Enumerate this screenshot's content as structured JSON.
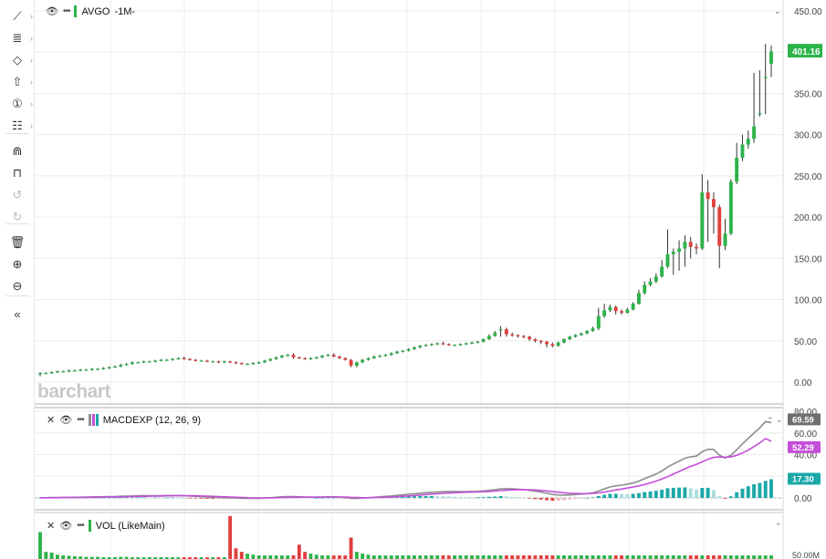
{
  "toolbar": {
    "items": [
      {
        "name": "line-tool-icon",
        "glyph": "⟋",
        "arrow": true
      },
      {
        "name": "fib-tool-icon",
        "glyph": "≣",
        "arrow": true
      },
      {
        "name": "shape-tool-icon",
        "glyph": "◇",
        "arrow": true
      },
      {
        "name": "arrow-tool-icon",
        "glyph": "⇧",
        "arrow": true
      },
      {
        "name": "annotation-tool-icon",
        "glyph": "①",
        "arrow": true
      },
      {
        "name": "settings-tool-icon",
        "glyph": "☷",
        "arrow": true
      },
      {
        "name": "magnet-icon",
        "glyph": "⋒",
        "arrow": false
      },
      {
        "name": "unlock-icon",
        "glyph": "⊓",
        "arrow": false
      },
      {
        "name": "undo-icon",
        "glyph": "↺",
        "arrow": false,
        "disabled": true
      },
      {
        "name": "redo-icon",
        "glyph": "↻",
        "arrow": false,
        "disabled": true
      },
      {
        "name": "trash-icon",
        "glyph": "🗑",
        "arrow": false
      },
      {
        "name": "zoom-in-icon",
        "glyph": "⊕",
        "arrow": false
      },
      {
        "name": "zoom-out-icon",
        "glyph": "⊖",
        "arrow": false
      },
      {
        "name": "collapse-icon",
        "glyph": "«",
        "arrow": false
      }
    ]
  },
  "main_legend": {
    "symbol": "AVGO",
    "interval": "-1M-",
    "swatch": "#2db34a"
  },
  "macd_legend": {
    "label": "MACDEXP (12, 26, 9)",
    "swatch_a": "#8c8c8c",
    "swatch_b": "#c44ed8"
  },
  "vol_legend": {
    "label": "VOL (LikeMain)",
    "swatch": "#2db34a"
  },
  "watermark": "barchart",
  "colors": {
    "up": "#2db34a",
    "down": "#e0403f",
    "macd_line": "#8c8c8c",
    "signal_line": "#c44ed8",
    "hist": "#1ba8a8",
    "hist_light": "#a9dede"
  },
  "chart_data": [
    {
      "type": "candlestick",
      "title": "AVGO -1M-",
      "ylim": [
        -20,
        450
      ],
      "y_ticks": [
        "450.00",
        "400.00",
        "350.00",
        "300.00",
        "250.00",
        "200.00",
        "150.00",
        "100.00",
        "50.00",
        "0.00"
      ],
      "last_price_label": "401.16",
      "close": [
        11,
        11,
        12,
        13,
        13,
        14,
        14,
        15,
        15,
        16,
        16,
        17,
        18,
        19,
        21,
        22,
        24,
        24,
        25,
        25,
        26,
        27,
        27,
        28,
        29,
        28,
        27,
        26,
        26,
        25,
        25,
        24,
        25,
        24,
        23,
        22,
        22,
        23,
        24,
        26,
        28,
        30,
        32,
        33,
        30,
        29,
        28,
        29,
        30,
        32,
        33,
        31,
        29,
        27,
        20,
        24,
        27,
        29,
        31,
        32,
        33,
        35,
        37,
        38,
        40,
        42,
        44,
        45,
        46,
        47,
        46,
        45,
        45,
        46,
        47,
        48,
        49,
        52,
        56,
        60,
        64,
        58,
        57,
        56,
        55,
        52,
        50,
        49,
        46,
        44,
        48,
        52,
        55,
        57,
        59,
        62,
        65,
        80,
        87,
        91,
        86,
        84,
        88,
        95,
        108,
        118,
        122,
        128,
        140,
        155,
        158,
        162,
        170,
        164,
        162,
        230,
        222,
        212,
        165,
        180,
        243,
        272,
        288,
        295,
        310,
        326,
        370,
        401
      ],
      "open": [
        10,
        11,
        11,
        12,
        13,
        13,
        14,
        14,
        15,
        15,
        16,
        16,
        17,
        18,
        19,
        21,
        22,
        24,
        24,
        25,
        25,
        26,
        27,
        27,
        28,
        29,
        28,
        27,
        26,
        26,
        25,
        25,
        24,
        25,
        24,
        23,
        22,
        22,
        23,
        24,
        26,
        28,
        30,
        32,
        33,
        30,
        29,
        28,
        29,
        30,
        32,
        33,
        31,
        29,
        27,
        20,
        24,
        27,
        29,
        31,
        32,
        33,
        35,
        37,
        38,
        40,
        42,
        44,
        45,
        46,
        47,
        46,
        45,
        45,
        46,
        47,
        48,
        49,
        52,
        56,
        64,
        64,
        58,
        57,
        56,
        55,
        52,
        50,
        49,
        46,
        44,
        48,
        52,
        55,
        57,
        59,
        62,
        65,
        80,
        87,
        91,
        86,
        84,
        88,
        95,
        108,
        118,
        122,
        128,
        140,
        155,
        158,
        162,
        170,
        164,
        162,
        230,
        222,
        212,
        165,
        180,
        243,
        272,
        288,
        295,
        326,
        370,
        386
      ],
      "high": [
        12,
        12,
        13,
        14,
        14,
        15,
        15,
        16,
        16,
        17,
        17,
        18,
        19,
        20,
        22,
        23,
        25,
        25,
        26,
        26,
        27,
        28,
        28,
        29,
        30,
        31,
        29,
        28,
        27,
        27,
        26,
        26,
        26,
        26,
        25,
        24,
        23,
        24,
        25,
        27,
        29,
        31,
        33,
        34,
        35,
        31,
        30,
        30,
        31,
        33,
        34,
        35,
        32,
        30,
        28,
        25,
        28,
        30,
        32,
        33,
        34,
        36,
        38,
        39,
        41,
        43,
        45,
        46,
        47,
        48,
        49,
        47,
        46,
        47,
        48,
        49,
        50,
        53,
        58,
        62,
        68,
        66,
        60,
        58,
        57,
        56,
        53,
        51,
        50,
        48,
        49,
        53,
        56,
        58,
        60,
        63,
        67,
        90,
        95,
        94,
        93,
        88,
        90,
        97,
        112,
        122,
        126,
        132,
        148,
        185,
        162,
        172,
        178,
        176,
        168,
        252,
        245,
        230,
        215,
        198,
        246,
        290,
        300,
        305,
        375,
        378,
        410,
        408
      ],
      "low": [
        7,
        10,
        10,
        11,
        12,
        12,
        13,
        13,
        14,
        14,
        15,
        15,
        16,
        17,
        18,
        20,
        21,
        23,
        23,
        24,
        24,
        25,
        26,
        26,
        27,
        27,
        26,
        25,
        25,
        24,
        24,
        23,
        23,
        23,
        22,
        21,
        21,
        21,
        22,
        23,
        25,
        27,
        29,
        31,
        28,
        28,
        27,
        27,
        28,
        29,
        31,
        30,
        28,
        26,
        18,
        18,
        23,
        26,
        28,
        30,
        31,
        32,
        34,
        36,
        37,
        39,
        41,
        43,
        44,
        45,
        45,
        44,
        44,
        44,
        45,
        46,
        47,
        48,
        51,
        55,
        55,
        55,
        55,
        54,
        53,
        50,
        48,
        46,
        42,
        42,
        43,
        47,
        51,
        54,
        56,
        58,
        61,
        63,
        78,
        85,
        82,
        82,
        83,
        87,
        94,
        106,
        116,
        120,
        127,
        138,
        130,
        135,
        140,
        150,
        155,
        160,
        170,
        180,
        138,
        160,
        178,
        240,
        268,
        283,
        290,
        322,
        325,
        370
      ]
    },
    {
      "type": "line",
      "title": "MACDEXP (12, 26, 9)",
      "ylim": [
        -5,
        80
      ],
      "y_ticks": [
        "80.00",
        "60.00",
        "40.00",
        "20.00",
        "0.00"
      ],
      "value_labels": [
        "69.59",
        "52.29",
        "17.30"
      ],
      "series": [
        {
          "name": "MACD",
          "values": [
            0.2,
            0.2,
            0.3,
            0.3,
            0.4,
            0.5,
            0.6,
            0.7,
            0.8,
            0.9,
            1.0,
            1.1,
            1.2,
            1.3,
            1.5,
            1.6,
            1.8,
            1.9,
            2.0,
            2.0,
            2.1,
            2.1,
            2.2,
            2.2,
            2.2,
            2.0,
            1.8,
            1.5,
            1.2,
            0.9,
            0.6,
            0.4,
            0.2,
            0.1,
            -0.1,
            -0.3,
            -0.4,
            -0.4,
            -0.3,
            -0.1,
            0.2,
            0.6,
            1.0,
            1.3,
            1.2,
            1.0,
            0.8,
            0.7,
            0.7,
            0.8,
            1.0,
            1.0,
            0.8,
            0.5,
            -0.4,
            -0.5,
            -0.2,
            0.2,
            0.6,
            1.0,
            1.4,
            1.8,
            2.3,
            2.8,
            3.3,
            3.8,
            4.3,
            4.8,
            5.2,
            5.5,
            5.7,
            5.8,
            5.8,
            5.8,
            5.9,
            6.0,
            6.1,
            6.4,
            6.9,
            7.6,
            8.4,
            8.5,
            8.4,
            8.1,
            7.7,
            7.0,
            6.2,
            5.4,
            4.3,
            3.2,
            2.7,
            2.6,
            2.8,
            3.1,
            3.5,
            4.0,
            4.6,
            6.4,
            8.3,
            10.1,
            11.1,
            11.8,
            12.6,
            13.7,
            15.5,
            17.8,
            19.9,
            22.1,
            24.9,
            28.5,
            31.3,
            33.9,
            36.6,
            38.0,
            38.6,
            42.5,
            44.9,
            44.7,
            39.4,
            36.9,
            39.4,
            44.5,
            49.9,
            55.0,
            59.9,
            64.6,
            70.5,
            69.6
          ]
        },
        {
          "name": "Signal",
          "values": [
            0.2,
            0.2,
            0.2,
            0.2,
            0.3,
            0.3,
            0.4,
            0.4,
            0.5,
            0.6,
            0.7,
            0.8,
            0.9,
            1.0,
            1.1,
            1.2,
            1.3,
            1.4,
            1.5,
            1.6,
            1.7,
            1.8,
            1.9,
            1.9,
            2.0,
            2.0,
            2.0,
            1.9,
            1.8,
            1.6,
            1.4,
            1.2,
            1.0,
            0.8,
            0.6,
            0.4,
            0.2,
            0.1,
            0.0,
            0.0,
            0.0,
            0.1,
            0.3,
            0.5,
            0.6,
            0.7,
            0.7,
            0.7,
            0.7,
            0.7,
            0.8,
            0.8,
            0.8,
            0.8,
            0.5,
            0.3,
            0.2,
            0.2,
            0.3,
            0.4,
            0.6,
            0.8,
            1.1,
            1.5,
            1.8,
            2.2,
            2.6,
            3.1,
            3.5,
            3.9,
            4.2,
            4.5,
            4.8,
            5.0,
            5.2,
            5.4,
            5.5,
            5.7,
            5.9,
            6.3,
            6.7,
            7.1,
            7.4,
            7.5,
            7.6,
            7.5,
            7.3,
            6.9,
            6.4,
            5.8,
            5.2,
            4.7,
            4.3,
            4.1,
            4.0,
            4.0,
            4.1,
            4.6,
            5.4,
            6.3,
            7.3,
            8.2,
            9.1,
            10.0,
            11.1,
            12.4,
            13.9,
            15.5,
            17.4,
            19.6,
            22.0,
            24.4,
            26.9,
            29.1,
            31.0,
            33.3,
            35.6,
            37.4,
            37.8,
            37.6,
            38.0,
            39.3,
            41.4,
            44.2,
            47.3,
            50.8,
            54.8,
            52.3
          ]
        },
        {
          "name": "Histogram",
          "values": [
            0.0,
            0.0,
            0.1,
            0.1,
            0.1,
            0.2,
            0.2,
            0.3,
            0.3,
            0.3,
            0.3,
            0.3,
            0.3,
            0.3,
            0.4,
            0.4,
            0.5,
            0.5,
            0.5,
            0.4,
            0.4,
            0.3,
            0.3,
            0.3,
            0.2,
            0.0,
            -0.2,
            -0.4,
            -0.6,
            -0.7,
            -0.8,
            -0.8,
            -0.8,
            -0.7,
            -0.7,
            -0.7,
            -0.6,
            -0.5,
            -0.3,
            -0.1,
            0.2,
            0.5,
            0.7,
            0.8,
            0.6,
            0.3,
            0.1,
            0.0,
            0.0,
            0.1,
            0.2,
            0.2,
            0.0,
            -0.3,
            -0.9,
            -0.8,
            -0.4,
            0.0,
            0.3,
            0.6,
            0.8,
            1.0,
            1.2,
            1.3,
            1.5,
            1.6,
            1.7,
            1.7,
            1.7,
            1.6,
            1.5,
            1.3,
            1.0,
            0.8,
            0.7,
            0.6,
            0.6,
            0.7,
            1.0,
            1.3,
            1.7,
            1.4,
            1.0,
            0.6,
            0.1,
            -0.5,
            -1.1,
            -1.5,
            -2.1,
            -2.6,
            -2.5,
            -2.1,
            -1.5,
            -1.0,
            -0.5,
            0.0,
            0.5,
            1.8,
            2.9,
            3.8,
            3.8,
            3.6,
            3.5,
            3.7,
            4.4,
            5.4,
            6.0,
            6.6,
            7.5,
            8.9,
            9.3,
            9.5,
            9.7,
            8.9,
            7.6,
            9.2,
            9.3,
            7.3,
            1.6,
            -0.7,
            1.4,
            5.2,
            8.5,
            10.8,
            12.6,
            13.8,
            15.7,
            17.3
          ]
        }
      ]
    },
    {
      "type": "bar",
      "title": "VOL (LikeMain)",
      "y_ticks": [
        "50.00M"
      ],
      "ylim": [
        0,
        130
      ],
      "values": [
        75,
        20,
        18,
        12,
        10,
        9,
        8,
        7,
        6,
        6,
        6,
        5,
        5,
        5,
        6,
        6,
        5,
        5,
        5,
        5,
        5,
        5,
        5,
        5,
        5,
        5,
        5,
        5,
        5,
        5,
        5,
        5,
        5,
        120,
        30,
        20,
        15,
        12,
        10,
        10,
        10,
        10,
        10,
        10,
        10,
        40,
        20,
        15,
        12,
        10,
        10,
        10,
        10,
        10,
        60,
        20,
        15,
        12,
        10,
        10,
        10,
        10,
        10,
        10,
        10,
        10,
        10,
        10,
        10,
        10,
        10,
        10,
        10,
        10,
        10,
        10,
        10,
        10,
        10,
        10,
        10,
        10,
        10,
        10,
        10,
        10,
        10,
        10,
        10,
        10,
        10,
        10,
        10,
        10,
        10,
        10,
        10,
        10,
        10,
        10,
        10,
        10,
        10,
        10,
        10,
        10,
        10,
        10,
        10,
        10,
        10,
        10,
        10,
        10,
        10,
        10,
        10,
        10,
        10,
        10,
        10,
        10,
        10,
        10,
        10,
        10,
        10,
        10
      ]
    }
  ]
}
